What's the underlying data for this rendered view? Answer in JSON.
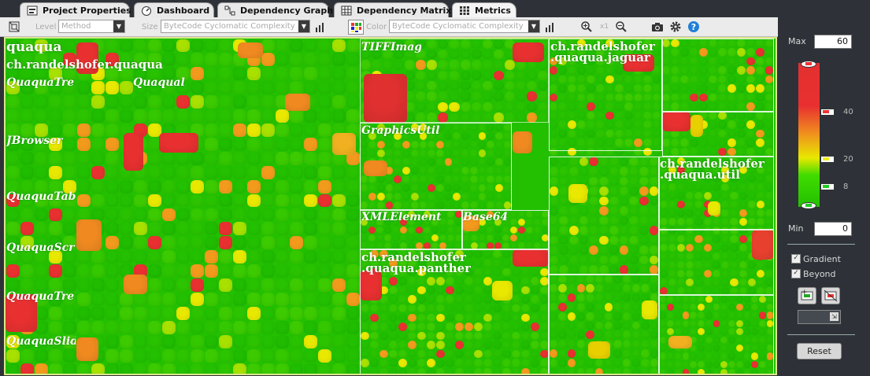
{
  "tabs": [
    {
      "label": "Project Properties",
      "icon": "project-properties-icon"
    },
    {
      "label": "Dashboard",
      "icon": "dashboard-icon"
    },
    {
      "label": "Dependency Graph",
      "icon": "dependency-graph-icon"
    },
    {
      "label": "Dependency Matrix",
      "icon": "dependency-matrix-icon"
    },
    {
      "label": "Metrics",
      "icon": "metrics-icon",
      "active": true
    }
  ],
  "toolbar": {
    "level_label": "Level",
    "level_value": "Method",
    "size_label": "Size",
    "size_value": "ByteCode Cyclomatic Complexity",
    "color_label": "Color",
    "color_value": "ByteCode Cyclomatic Complexity",
    "zoom_reset": "x1"
  },
  "treemap": {
    "labels": [
      {
        "text": "quaqua",
        "kind": "pkg"
      },
      {
        "text": "ch.randelshofer.quaqua",
        "kind": "pkg"
      },
      {
        "text": "QuaquaTre",
        "kind": "cls"
      },
      {
        "text": "Quaqual",
        "kind": "cls"
      },
      {
        "text": "JBrowser",
        "kind": "cls"
      },
      {
        "text": "QuaquaTab",
        "kind": "cls"
      },
      {
        "text": "QuaquaScr",
        "kind": "cls"
      },
      {
        "text": "QuaquaTre",
        "kind": "cls"
      },
      {
        "text": "QuaquaSlid",
        "kind": "cls"
      },
      {
        "text": "TIFFImag",
        "kind": "cls"
      },
      {
        "text": "GraphicsUtil",
        "kind": "cls"
      },
      {
        "text": "XMLElement",
        "kind": "cls"
      },
      {
        "text": "Base64",
        "kind": "cls"
      },
      {
        "text": "ch.randelshofer",
        "kind": "pkg"
      },
      {
        "text": ".quaqua.panther",
        "kind": "pkg"
      },
      {
        "text": "ch.randelshofer",
        "kind": "pkg"
      },
      {
        "text": ".quaqua.jaguar",
        "kind": "pkg"
      },
      {
        "text": "ch.randelshofer",
        "kind": "pkg"
      },
      {
        "text": ".quaqua.util",
        "kind": "pkg"
      }
    ]
  },
  "panel": {
    "max_label": "Max",
    "max_value": "60",
    "min_label": "Min",
    "min_value": "0",
    "scale_ticks": [
      "40",
      "20",
      "8"
    ],
    "gradient_label": "Gradient",
    "gradient_checked": true,
    "beyond_label": "Beyond",
    "beyond_checked": true,
    "reset_label": "Reset"
  },
  "colors": {
    "low": "#22c000",
    "mid": "#e8e800",
    "high": "#e83030",
    "background": "#2e3238"
  }
}
